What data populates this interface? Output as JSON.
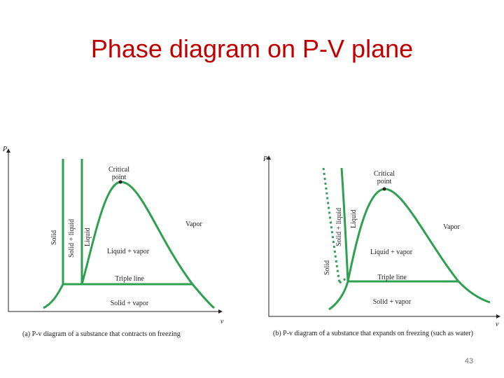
{
  "title": "Phase diagram on P-V plane",
  "slide_number": "43",
  "diagrams": [
    {
      "y_axis": "P",
      "x_axis": "v",
      "critical_point": [
        "Critical",
        "point"
      ],
      "vapor": "Vapor",
      "solid": "Solid",
      "solid_liquid": "Solid + liquid",
      "liquid": "Liquid",
      "liquid_vapor": "Liquid + vapor",
      "triple_line": "Triple line",
      "solid_vapor": "Solid + vapor",
      "caption": "(a) P-v diagram of a substance that contracts on freezing"
    },
    {
      "y_axis": "P",
      "x_axis": "v",
      "critical_point": [
        "Critical",
        "point"
      ],
      "vapor": "Vapor",
      "solid": "Solid",
      "solid_liquid": "Solid + liquid",
      "liquid": "Liquid",
      "liquid_vapor": "Liquid + vapor",
      "triple_line": "Triple line",
      "solid_vapor": "Solid + vapor",
      "caption": "(b) P-v diagram of a substance that expands on freezing (such as water)"
    }
  ]
}
